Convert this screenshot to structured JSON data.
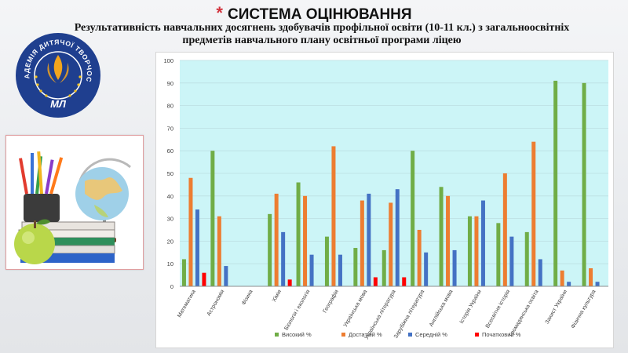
{
  "slide": {
    "title": "СИСТЕМА  ОЦІНЮВАННЯ",
    "subtitle_line1": "Результативність навчальних досягнень здобувачів профільної освіти (10-11 кл.) з загальноосвітніх",
    "subtitle_line2": "предметів навчального плану освітньої програми ліцею"
  },
  "logo": {
    "arc_text": "АКАДЕМІЯ ДИТЯЧОЇ ТВОРЧОСТІ",
    "initials": "МЛ",
    "colors": {
      "disc": "#1f3f8f",
      "ring": "#ffffff",
      "flame": "#f2a51e"
    }
  },
  "photo": {
    "icons": [
      "globe-icon",
      "books-icon",
      "pencils-icon",
      "apple-icon"
    ]
  },
  "chart_data": {
    "type": "bar",
    "categories": [
      "Математика",
      "Астрономія",
      "Фізика",
      "Хімія",
      "Біологія і екологія",
      "Географія",
      "Українська мова",
      "Українська література",
      "Зарубіжна література",
      "Англійська мова",
      "Історія України",
      "Всесвітня історія",
      "Громадянська освіта",
      "Захист України",
      "Фізична культура"
    ],
    "series": [
      {
        "name": "Високий %",
        "color": "#70ad47",
        "values": [
          12,
          60,
          0,
          32,
          46,
          22,
          17,
          16,
          60,
          44,
          31,
          28,
          24,
          91,
          90
        ]
      },
      {
        "name": "Достатній %",
        "color": "#ed7d31",
        "values": [
          48,
          31,
          0,
          41,
          40,
          62,
          38,
          37,
          25,
          40,
          31,
          50,
          64,
          7,
          8
        ]
      },
      {
        "name": "Середній %",
        "color": "#4472c4",
        "values": [
          34,
          9,
          0,
          24,
          14,
          14,
          41,
          43,
          15,
          16,
          38,
          22,
          12,
          2,
          2
        ]
      },
      {
        "name": "Початковий %",
        "color": "#ff0000",
        "values": [
          6,
          0,
          0,
          3,
          0,
          0,
          4,
          4,
          0,
          0,
          0,
          0,
          0,
          0,
          0
        ]
      }
    ],
    "yticks": [
      "0",
      "10",
      "20",
      "30",
      "40",
      "50",
      "60",
      "70",
      "80",
      "90",
      "100"
    ],
    "ylim": [
      0,
      100
    ],
    "grid": true,
    "legend_position": "bottom",
    "plot_background": "#ccf5f7"
  }
}
